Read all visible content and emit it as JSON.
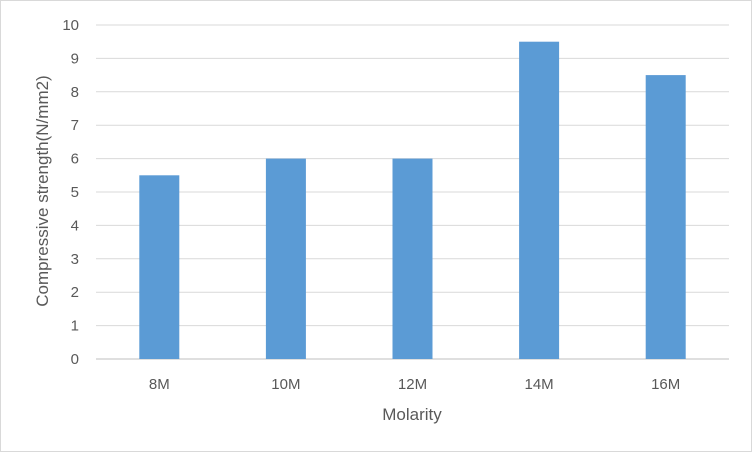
{
  "chart_data": {
    "type": "bar",
    "categories": [
      "8M",
      "10M",
      "12M",
      "14M",
      "16M"
    ],
    "values": [
      5.5,
      6,
      6,
      9.5,
      8.5
    ],
    "title": "",
    "xlabel": "Molarity",
    "ylabel": "Compressive strength(N/mm2)",
    "ylim": [
      0,
      10
    ],
    "yticks": [
      0,
      1,
      2,
      3,
      4,
      5,
      6,
      7,
      8,
      9,
      10
    ],
    "grid": true,
    "legend": "none",
    "bar_color": "#5b9bd5"
  }
}
